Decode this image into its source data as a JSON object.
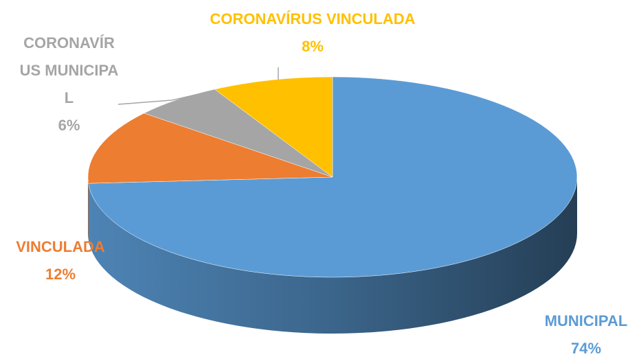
{
  "chart_data": {
    "type": "pie",
    "categories": [
      "MUNICIPAL",
      "VINCULADA",
      "CORONAVÍRUS MUNICIPAL",
      "CORONAVÍRUS VINCULADA"
    ],
    "values": [
      74,
      12,
      6,
      8
    ],
    "value_labels": [
      "74%",
      "12%",
      "6%",
      "8%"
    ],
    "colors": [
      "#5b9bd5",
      "#ed7d31",
      "#a5a5a5",
      "#ffc000"
    ]
  }
}
